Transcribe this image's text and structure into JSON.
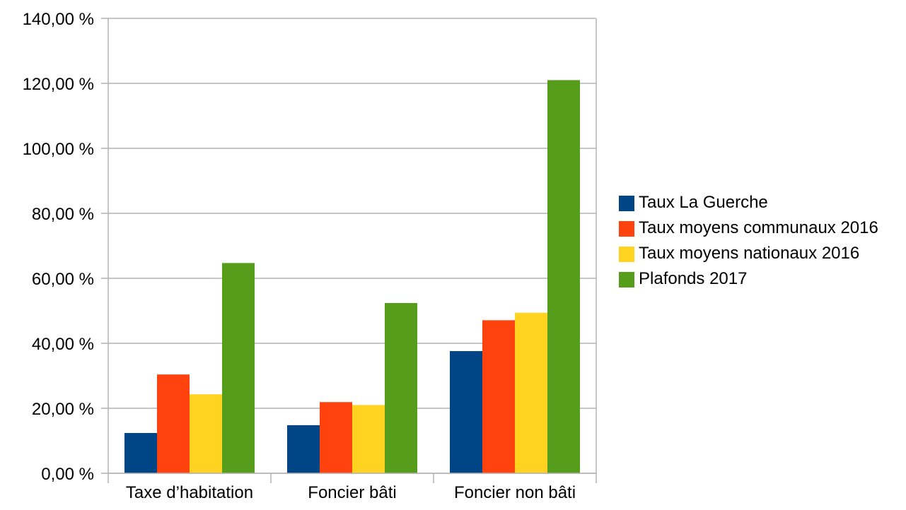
{
  "chart_data": {
    "type": "bar",
    "title": "",
    "xlabel": "",
    "ylabel": "",
    "categories": [
      "Taxe d’habitation",
      "Foncier bâti",
      "Foncier non bâti"
    ],
    "series": [
      {
        "name": "Taux La Guerche",
        "color": "#004586",
        "values": [
          12.4,
          14.8,
          37.6
        ]
      },
      {
        "name": "Taux moyens communaux 2016",
        "color": "#ff420e",
        "values": [
          30.4,
          21.9,
          47.1
        ]
      },
      {
        "name": "Taux moyens nationaux 2016",
        "color": "#ffd320",
        "values": [
          24.3,
          21.0,
          49.4
        ]
      },
      {
        "name": "Plafonds 2017",
        "color": "#579d1c",
        "values": [
          64.7,
          52.4,
          121.0
        ]
      }
    ],
    "ylim": [
      0,
      140
    ],
    "yticks": [
      "0,00 %",
      "20,00 %",
      "40,00 %",
      "60,00 %",
      "80,00 %",
      "100,00 %",
      "120,00 %",
      "140,00 %"
    ],
    "ytick_values": [
      0,
      20,
      40,
      60,
      80,
      100,
      120,
      140
    ],
    "grid": true,
    "legend_position": "right"
  }
}
